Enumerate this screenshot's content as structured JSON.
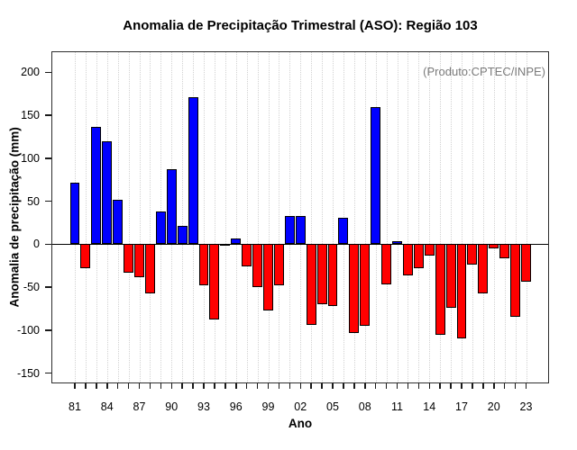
{
  "title": "Anomalia de Precipitação Trimestral (ASO): Região 103",
  "annotation": "(Produto:CPTEC/INPE)",
  "chart_data": {
    "type": "bar",
    "title": "Anomalia de Precipitação Trimestral (ASO): Região 103",
    "xlabel": "Ano",
    "ylabel": "Anomalia de precipitação (mm)",
    "annotation": "(Produto:CPTEC/INPE)",
    "ylim": [
      -161,
      223
    ],
    "yticks": [
      200,
      150,
      100,
      50,
      0,
      -50,
      -100,
      -150
    ],
    "labeled_x_ticks": [
      "81",
      "84",
      "87",
      "90",
      "93",
      "96",
      "99",
      "02",
      "05",
      "08",
      "11",
      "14",
      "17",
      "20",
      "23"
    ],
    "grid": "vertical-dotted-per-year",
    "legend": "none",
    "positive_color": "#0000ff",
    "negative_color": "#ff0000",
    "bar_border_color": "#000000",
    "categories": [
      "81",
      "82",
      "83",
      "84",
      "85",
      "86",
      "87",
      "88",
      "89",
      "90",
      "91",
      "92",
      "93",
      "94",
      "95",
      "96",
      "97",
      "98",
      "99",
      "00",
      "01",
      "02",
      "03",
      "04",
      "05",
      "06",
      "07",
      "08",
      "09",
      "10",
      "11",
      "12",
      "13",
      "14",
      "15",
      "16",
      "17",
      "18",
      "19",
      "20",
      "21",
      "22",
      "23"
    ],
    "values": [
      72,
      -28,
      136,
      120,
      52,
      -33,
      -38,
      -57,
      38,
      87,
      21,
      171,
      -48,
      -88,
      -2,
      7,
      -26,
      -50,
      -77,
      -48,
      33,
      33,
      -94,
      -70,
      -72,
      31,
      -103,
      -95,
      159,
      -47,
      3,
      -36,
      -28,
      -13,
      -105,
      -74,
      -110,
      -24,
      -57,
      -5,
      -16,
      -84,
      -44
    ]
  }
}
